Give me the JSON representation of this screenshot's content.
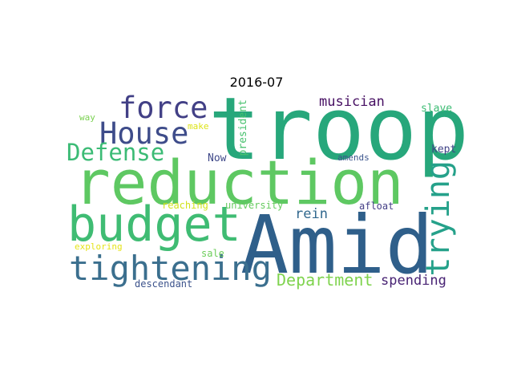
{
  "title": "2016-07",
  "words": [
    {
      "text": "troop",
      "color": "#27a77b"
    },
    {
      "text": "reduction",
      "color": "#5ec862"
    },
    {
      "text": "Amid",
      "color": "#2f5f8a"
    },
    {
      "text": "budget",
      "color": "#3fbc73"
    },
    {
      "text": "tightening",
      "color": "#3b6f8e"
    },
    {
      "text": "force",
      "color": "#424086"
    },
    {
      "text": "House",
      "color": "#3e4c8a"
    },
    {
      "text": "Defense",
      "color": "#3bbb75"
    },
    {
      "text": "trying",
      "color": "#25a18a"
    },
    {
      "text": "Department",
      "color": "#7fd34e"
    },
    {
      "text": "spending",
      "color": "#482374"
    },
    {
      "text": "musician",
      "color": "#471063"
    },
    {
      "text": "rein",
      "color": "#31688e"
    },
    {
      "text": "president",
      "color": "#47c16e"
    },
    {
      "text": "slave",
      "color": "#3dbc74"
    },
    {
      "text": "kept",
      "color": "#404387"
    },
    {
      "text": "amends",
      "color": "#3a548c"
    },
    {
      "text": "afloat",
      "color": "#433e85"
    },
    {
      "text": "reaching",
      "color": "#d2e21b"
    },
    {
      "text": "university",
      "color": "#65cb5e"
    },
    {
      "text": "Now",
      "color": "#3f4889"
    },
    {
      "text": "make",
      "color": "#dde318"
    },
    {
      "text": "way",
      "color": "#7ad151"
    },
    {
      "text": "exploring",
      "color": "#e5e419"
    },
    {
      "text": "sale",
      "color": "#6ccd5a"
    },
    {
      "text": "descendant",
      "color": "#3b528b"
    }
  ]
}
